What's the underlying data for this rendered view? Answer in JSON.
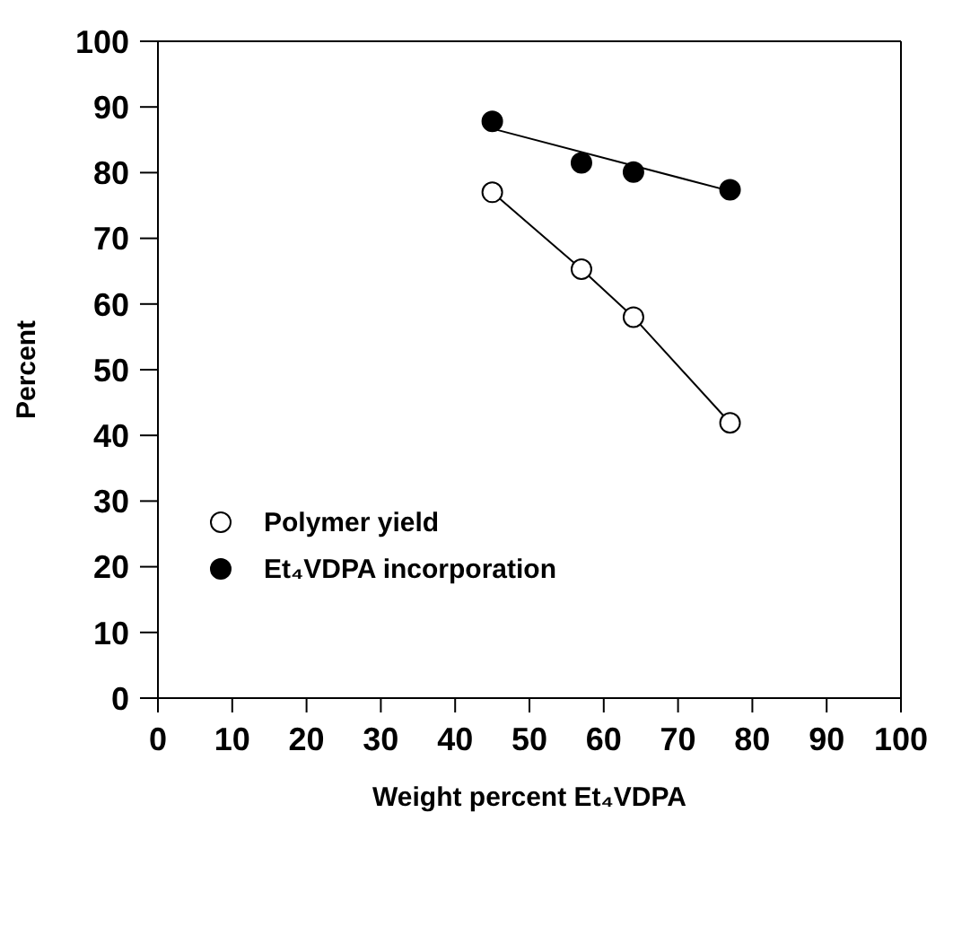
{
  "chart_data": {
    "type": "scatter",
    "xlabel": "Weight percent Et₄VDPA",
    "ylabel": "Percent",
    "xlim": [
      0,
      100
    ],
    "xticks": [
      0,
      10,
      20,
      30,
      40,
      50,
      60,
      70,
      80,
      90,
      100
    ],
    "ylim": [
      0,
      100
    ],
    "yticks": [
      0,
      10,
      20,
      30,
      40,
      50,
      60,
      70,
      80,
      90,
      100
    ],
    "legend": "left",
    "series": [
      {
        "name": "Polymer yield",
        "type": "line",
        "marker": "circle",
        "color": "#ffffff",
        "x": [
          45,
          57,
          64,
          77
        ],
        "values": [
          77.0,
          65.3,
          58.0,
          41.9
        ]
      },
      {
        "name": "Et₄VDPA incorporation",
        "marker": "circle",
        "color": "#000000",
        "x": [
          45,
          57,
          64,
          77
        ],
        "values": [
          87.8,
          81.5,
          80.1,
          77.4
        ]
      },
      {
        "type": "line",
        "marker": "none",
        "color": "#000000",
        "x": [
          45,
          77
        ],
        "values": [
          86.7,
          77.2
        ]
      }
    ]
  }
}
